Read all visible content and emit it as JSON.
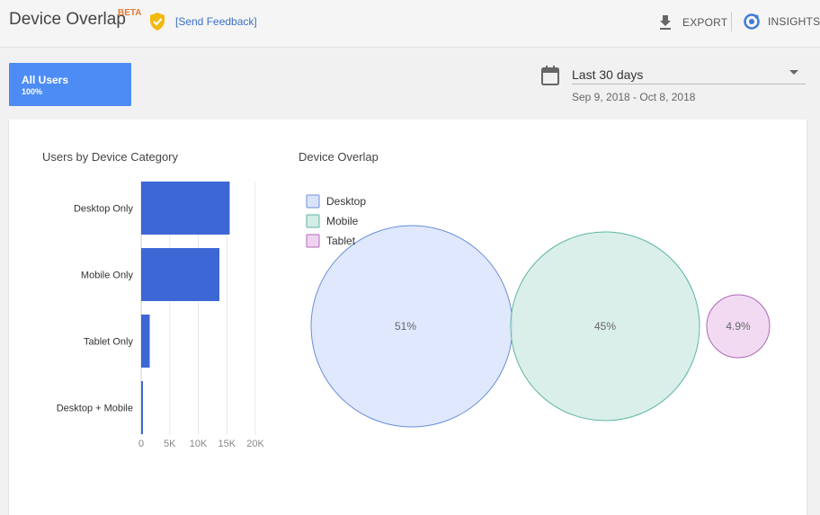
{
  "header": {
    "title": "Device Overlap",
    "beta": "BETA",
    "feedback": "[Send Feedback]",
    "export": "EXPORT",
    "insights": "INSIGHTS"
  },
  "segment": {
    "name": "All Users",
    "percent": "100%"
  },
  "date_range": {
    "label": "Last 30 days",
    "dates": "Sep 9, 2018 - Oct 8, 2018"
  },
  "colors": {
    "bar": "#3e67d6",
    "desktop_fill": "#d9e4fb",
    "desktop_stroke": "#6a8fd8",
    "mobile_fill": "#d4ece6",
    "mobile_stroke": "#5fb5a3",
    "tablet_fill": "#efd3f0",
    "tablet_stroke": "#b068b8"
  },
  "chart_data": [
    {
      "type": "bar",
      "title": "Users by Device Category",
      "orientation": "horizontal",
      "categories": [
        "Desktop Only",
        "Mobile Only",
        "Tablet Only",
        "Desktop + Mobile"
      ],
      "values": [
        15500,
        13700,
        1500,
        250
      ],
      "xlim": [
        0,
        20000
      ],
      "ticks": [
        0,
        5000,
        10000,
        15000,
        20000
      ],
      "tick_labels": [
        "0",
        "5K",
        "10K",
        "15K",
        "20K"
      ],
      "grid": true
    },
    {
      "type": "venn",
      "title": "Device Overlap",
      "legend": [
        "Desktop",
        "Mobile",
        "Tablet"
      ],
      "sets": [
        {
          "name": "Desktop",
          "label": "51%",
          "value": 51
        },
        {
          "name": "Mobile",
          "label": "45%",
          "value": 45
        },
        {
          "name": "Tablet",
          "label": "4.9%",
          "value": 4.9
        }
      ],
      "legend_position": "top-left"
    }
  ]
}
